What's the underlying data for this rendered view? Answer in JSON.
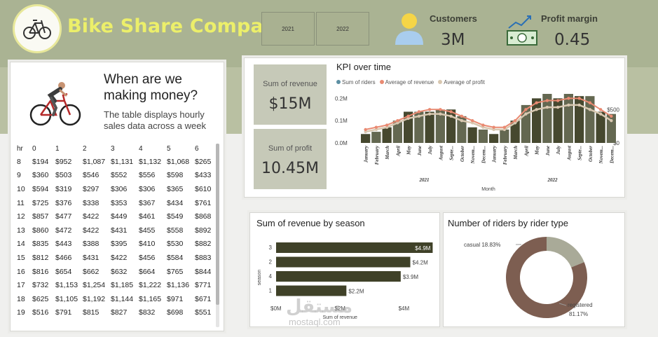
{
  "header": {
    "company_title": "Bike Share Company",
    "year_slicer": [
      "2021",
      "2022"
    ],
    "customers": {
      "label": "Customers",
      "value": "3M"
    },
    "profit_margin": {
      "label": "Profit margin",
      "value": "0.45"
    }
  },
  "intro": {
    "title": "When are we making money?",
    "subtitle": "The table displays hourly sales data across a week"
  },
  "hourly_table": {
    "headers": [
      "hr",
      "0",
      "1",
      "2",
      "3",
      "4",
      "5",
      "6"
    ],
    "rows": [
      [
        "8",
        "$194",
        "$952",
        "$1,087",
        "$1,131",
        "$1,132",
        "$1,068",
        "$265"
      ],
      [
        "9",
        "$360",
        "$503",
        "$546",
        "$552",
        "$556",
        "$598",
        "$433"
      ],
      [
        "10",
        "$594",
        "$319",
        "$297",
        "$306",
        "$306",
        "$365",
        "$610"
      ],
      [
        "11",
        "$725",
        "$376",
        "$338",
        "$353",
        "$367",
        "$434",
        "$761"
      ],
      [
        "12",
        "$857",
        "$477",
        "$422",
        "$449",
        "$461",
        "$549",
        "$868"
      ],
      [
        "13",
        "$860",
        "$472",
        "$422",
        "$431",
        "$455",
        "$558",
        "$892"
      ],
      [
        "14",
        "$835",
        "$443",
        "$388",
        "$395",
        "$410",
        "$530",
        "$882"
      ],
      [
        "15",
        "$812",
        "$466",
        "$431",
        "$422",
        "$456",
        "$584",
        "$883"
      ],
      [
        "16",
        "$816",
        "$654",
        "$662",
        "$632",
        "$664",
        "$765",
        "$844"
      ],
      [
        "17",
        "$732",
        "$1,153",
        "$1,254",
        "$1,185",
        "$1,222",
        "$1,136",
        "$771"
      ],
      [
        "18",
        "$625",
        "$1,105",
        "$1,192",
        "$1,144",
        "$1,165",
        "$971",
        "$671"
      ],
      [
        "19",
        "$516",
        "$791",
        "$815",
        "$827",
        "$832",
        "$698",
        "$551"
      ]
    ]
  },
  "metrics": {
    "revenue": {
      "label": "Sum of revenue",
      "value": "$15M"
    },
    "profit": {
      "label": "Sum of profit",
      "value": "10.45M"
    }
  },
  "kpi_chart": {
    "title": "KPI over time",
    "legend": [
      "Sum of riders",
      "Average of revenue",
      "Average of profit"
    ],
    "xlabel": "Month",
    "years": [
      "2021",
      "2022"
    ],
    "months": [
      "January",
      "February",
      "March",
      "April",
      "May",
      "June",
      "July",
      "August",
      "Septe...",
      "October",
      "Novem...",
      "Decem..."
    ],
    "left_ticks": [
      "0.2M",
      "0.1M",
      "0.0M"
    ],
    "right_ticks": [
      "$500",
      "$0"
    ]
  },
  "season_chart": {
    "title": "Sum of revenue by season",
    "ylabel": "season",
    "xlabel": "Sum of revenue",
    "x_ticks": [
      "$0M",
      "$2M",
      "$4M"
    ],
    "bar_labels": [
      "$4.9M",
      "$4.2M",
      "$3.9M",
      "$2.2M"
    ]
  },
  "rider_type_chart": {
    "title": "Number of riders by rider type",
    "casual_label": "casual 18.83%",
    "registered_label": "registered",
    "registered_pct": "81.17%"
  },
  "watermark": {
    "arabic": "مستقل",
    "latin": "mostaql.com"
  },
  "colors": {
    "header_bg": "#aab393",
    "bar_dark": "#3f4128",
    "bar_olive": "#5b5f45",
    "line_orange": "#e98a72",
    "line_tan": "#d8c7b0",
    "donut_brown": "#7d5e51",
    "donut_grey": "#a9aa98"
  },
  "chart_data": [
    {
      "type": "bar",
      "title": "KPI over time",
      "xlabel": "Month",
      "ylabel": "",
      "categories": [
        "2021-01",
        "2021-02",
        "2021-03",
        "2021-04",
        "2021-05",
        "2021-06",
        "2021-07",
        "2021-08",
        "2021-09",
        "2021-10",
        "2021-11",
        "2021-12",
        "2022-01",
        "2022-02",
        "2022-03",
        "2022-04",
        "2022-05",
        "2022-06",
        "2022-07",
        "2022-08",
        "2022-09",
        "2022-10",
        "2022-11",
        "2022-12"
      ],
      "ylim": [
        0,
        0.22
      ],
      "series": [
        {
          "name": "Sum of riders",
          "type": "bar",
          "values": [
            0.04,
            0.05,
            0.07,
            0.1,
            0.14,
            0.14,
            0.14,
            0.15,
            0.15,
            0.12,
            0.07,
            0.06,
            0.04,
            0.06,
            0.1,
            0.17,
            0.2,
            0.22,
            0.2,
            0.22,
            0.21,
            0.21,
            0.14,
            0.13
          ]
        },
        {
          "name": "Average of revenue",
          "type": "line",
          "values": [
            0.06,
            0.07,
            0.08,
            0.1,
            0.12,
            0.14,
            0.15,
            0.15,
            0.14,
            0.12,
            0.1,
            0.08,
            0.07,
            0.07,
            0.1,
            0.15,
            0.18,
            0.19,
            0.19,
            0.2,
            0.2,
            0.18,
            0.15,
            0.12
          ]
        },
        {
          "name": "Average of profit",
          "type": "line",
          "values": [
            0.05,
            0.06,
            0.07,
            0.09,
            0.11,
            0.12,
            0.13,
            0.13,
            0.12,
            0.1,
            0.09,
            0.07,
            0.06,
            0.06,
            0.09,
            0.13,
            0.15,
            0.16,
            0.16,
            0.17,
            0.17,
            0.15,
            0.13,
            0.1
          ]
        }
      ]
    },
    {
      "type": "bar",
      "title": "Sum of revenue by season",
      "xlabel": "Sum of revenue",
      "ylabel": "season",
      "categories": [
        "3",
        "2",
        "4",
        "1"
      ],
      "values": [
        4.9,
        4.2,
        3.9,
        2.2
      ],
      "xlim": [
        0,
        5
      ]
    },
    {
      "type": "pie",
      "title": "Number of riders by rider type",
      "categories": [
        "casual",
        "registered"
      ],
      "values": [
        18.83,
        81.17
      ]
    }
  ]
}
